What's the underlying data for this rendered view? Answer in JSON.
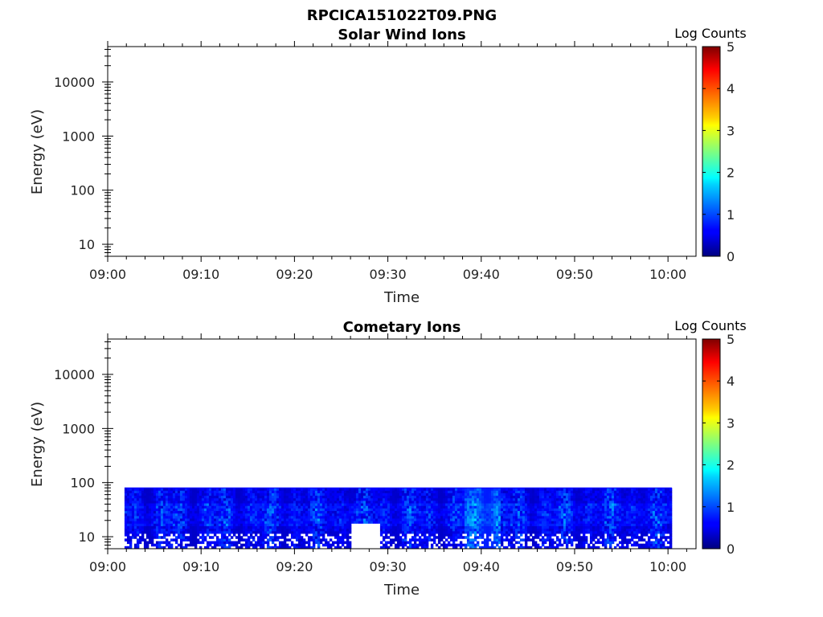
{
  "figure_title": "RPCICA151022T09.PNG",
  "chart_data": [
    {
      "type": "heatmap",
      "title": "Solar Wind Ions",
      "xlabel": "Time",
      "ylabel": "Energy (eV)",
      "x_ticks": [
        "09:00",
        "09:10",
        "09:20",
        "09:30",
        "09:40",
        "09:50",
        "10:00"
      ],
      "x_range_minutes": [
        0,
        63
      ],
      "y_scale": "log",
      "y_range": [
        6,
        45000
      ],
      "y_ticks": [
        "10",
        "100",
        "1000",
        "10000"
      ],
      "y_tick_values": [
        10,
        100,
        1000,
        10000
      ],
      "colorbar": {
        "label": "Log Counts",
        "range": [
          0,
          5
        ],
        "ticks": [
          "0",
          "1",
          "2",
          "3",
          "4",
          "5"
        ]
      },
      "data_present": false
    },
    {
      "type": "heatmap",
      "title": "Cometary Ions",
      "xlabel": "Time",
      "ylabel": "Energy (eV)",
      "x_ticks": [
        "09:00",
        "09:10",
        "09:20",
        "09:30",
        "09:40",
        "09:50",
        "10:00"
      ],
      "x_range_minutes": [
        0,
        63
      ],
      "y_scale": "log",
      "y_range": [
        6,
        45000
      ],
      "y_ticks": [
        "10",
        "100",
        "1000",
        "10000"
      ],
      "y_tick_values": [
        10,
        100,
        1000,
        10000
      ],
      "colorbar": {
        "label": "Log Counts",
        "range": [
          0,
          5
        ],
        "ticks": [
          "0",
          "1",
          "2",
          "3",
          "4",
          "5"
        ]
      },
      "data_present": true,
      "data_time_range_minutes": [
        1.8,
        60.4
      ],
      "data_energy_range_eV": [
        6,
        80
      ],
      "typical_log_counts": [
        0.3,
        1.6
      ]
    }
  ]
}
